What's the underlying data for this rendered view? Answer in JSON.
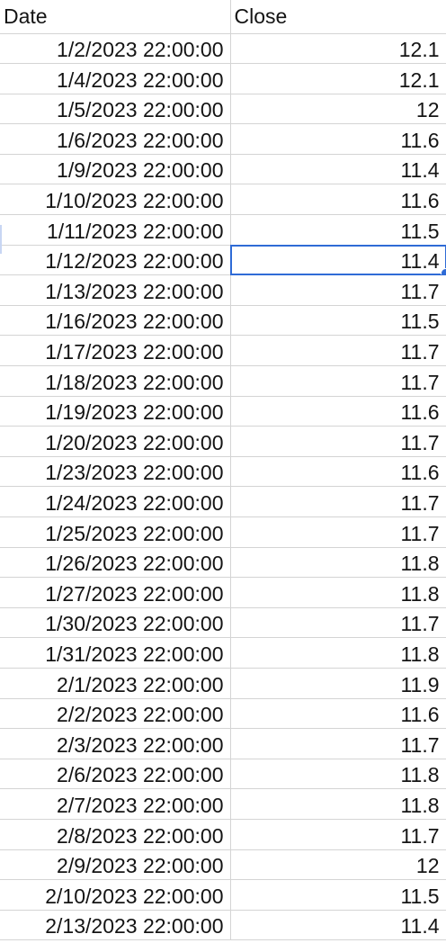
{
  "sheet": {
    "headers": {
      "date": "Date",
      "close": "Close"
    },
    "rows": [
      {
        "date": "1/2/2023 22:00:00",
        "close": "12.1"
      },
      {
        "date": "1/4/2023 22:00:00",
        "close": "12.1"
      },
      {
        "date": "1/5/2023 22:00:00",
        "close": "12"
      },
      {
        "date": "1/6/2023 22:00:00",
        "close": "11.6"
      },
      {
        "date": "1/9/2023 22:00:00",
        "close": "11.4"
      },
      {
        "date": "1/10/2023 22:00:00",
        "close": "11.6"
      },
      {
        "date": "1/11/2023 22:00:00",
        "close": "11.5"
      },
      {
        "date": "1/12/2023 22:00:00",
        "close": "11.4"
      },
      {
        "date": "1/13/2023 22:00:00",
        "close": "11.7"
      },
      {
        "date": "1/16/2023 22:00:00",
        "close": "11.5"
      },
      {
        "date": "1/17/2023 22:00:00",
        "close": "11.7"
      },
      {
        "date": "1/18/2023 22:00:00",
        "close": "11.7"
      },
      {
        "date": "1/19/2023 22:00:00",
        "close": "11.6"
      },
      {
        "date": "1/20/2023 22:00:00",
        "close": "11.7"
      },
      {
        "date": "1/23/2023 22:00:00",
        "close": "11.6"
      },
      {
        "date": "1/24/2023 22:00:00",
        "close": "11.7"
      },
      {
        "date": "1/25/2023 22:00:00",
        "close": "11.7"
      },
      {
        "date": "1/26/2023 22:00:00",
        "close": "11.8"
      },
      {
        "date": "1/27/2023 22:00:00",
        "close": "11.8"
      },
      {
        "date": "1/30/2023 22:00:00",
        "close": "11.7"
      },
      {
        "date": "1/31/2023 22:00:00",
        "close": "11.8"
      },
      {
        "date": "2/1/2023 22:00:00",
        "close": "11.9"
      },
      {
        "date": "2/2/2023 22:00:00",
        "close": "11.6"
      },
      {
        "date": "2/3/2023 22:00:00",
        "close": "11.7"
      },
      {
        "date": "2/6/2023 22:00:00",
        "close": "11.8"
      },
      {
        "date": "2/7/2023 22:00:00",
        "close": "11.8"
      },
      {
        "date": "2/8/2023 22:00:00",
        "close": "11.7"
      },
      {
        "date": "2/9/2023 22:00:00",
        "close": "12"
      },
      {
        "date": "2/10/2023 22:00:00",
        "close": "11.5"
      },
      {
        "date": "2/13/2023 22:00:00",
        "close": "11.4"
      }
    ],
    "selected_row": 7,
    "selected_column": "close",
    "selection_color": "#2f6bd6",
    "gridline_color": "#d4d4d4"
  }
}
